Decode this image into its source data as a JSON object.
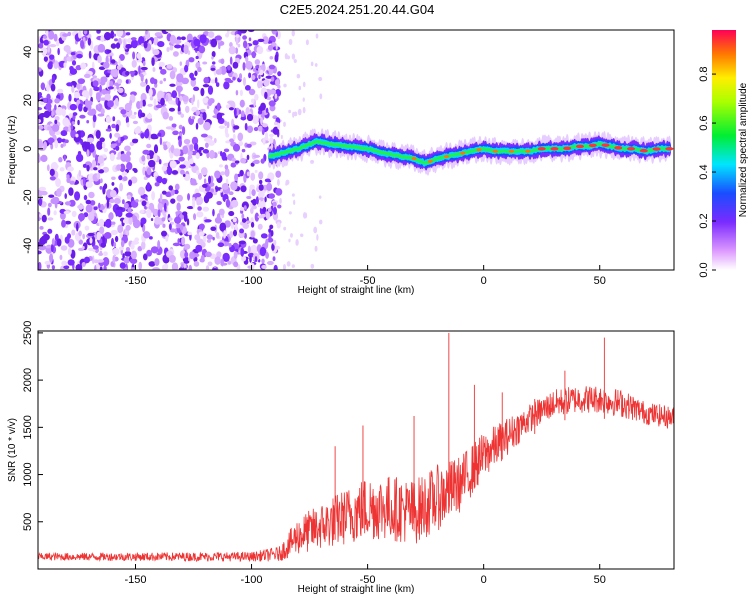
{
  "title": "C2E5.2024.251.20.44.G04",
  "chart_data": [
    {
      "type": "heatmap",
      "name": "spectrogram",
      "xlabel": "Height of straight line (km)",
      "ylabel": "Frequency (Hz)",
      "xlim": [
        -192,
        82
      ],
      "ylim": [
        -50,
        49
      ],
      "xticks": [
        -150,
        -100,
        -50,
        0,
        50
      ],
      "yticks": [
        -40,
        -20,
        0,
        20,
        40
      ],
      "noise_region_x": [
        -192,
        -90
      ],
      "signal_track": {
        "x": [
          -92,
          -88,
          -80,
          -72,
          -66,
          -58,
          -50,
          -42,
          -36,
          -30,
          -25,
          -20,
          -15,
          -10,
          -5,
          0,
          5,
          10,
          15,
          20,
          25,
          30,
          35,
          40,
          45,
          50,
          55,
          60,
          65,
          70,
          75,
          80
        ],
        "freq": [
          -3,
          -2,
          0,
          3,
          2,
          1,
          0,
          -2,
          -3,
          -4,
          -6,
          -4,
          -3,
          -2,
          -1,
          0,
          -1,
          -1,
          -1,
          -1,
          0,
          0,
          0,
          1,
          1,
          2,
          1,
          0,
          0,
          -1,
          0,
          0
        ]
      },
      "colorbar": {
        "label": "Normalized spectral amplitude",
        "range": [
          0,
          0.98
        ],
        "ticks": [
          "0.0",
          "0.2",
          "0.4",
          "0.6",
          "0.8"
        ]
      }
    },
    {
      "type": "line",
      "name": "snr",
      "xlabel": "Height of straight line (km)",
      "ylabel": "SNR (10 * v/v)",
      "xlim": [
        -192,
        82
      ],
      "ylim": [
        0,
        2520
      ],
      "xticks": [
        -150,
        -100,
        -50,
        0,
        50
      ],
      "yticks": [
        500,
        1000,
        1500,
        2000,
        2500
      ],
      "series": [
        {
          "name": "SNR",
          "color": "#ee3333",
          "envelope_x": [
            -192,
            -100,
            -88,
            -80,
            -70,
            -60,
            -50,
            -40,
            -30,
            -20,
            -10,
            0,
            10,
            20,
            30,
            40,
            50,
            60,
            70,
            82
          ],
          "envelope_mean": [
            130,
            130,
            160,
            350,
            450,
            550,
            650,
            650,
            600,
            750,
            900,
            1200,
            1400,
            1600,
            1750,
            1800,
            1800,
            1750,
            1650,
            1600
          ],
          "envelope_spread": [
            40,
            50,
            80,
            200,
            250,
            300,
            350,
            350,
            350,
            350,
            300,
            250,
            200,
            150,
            150,
            150,
            150,
            150,
            120,
            120
          ],
          "spikes": [
            {
              "x": -15,
              "y": 2500
            },
            {
              "x": -30,
              "y": 1620
            },
            {
              "x": -52,
              "y": 1520
            },
            {
              "x": 52,
              "y": 2450
            },
            {
              "x": -64,
              "y": 1300
            },
            {
              "x": 8,
              "y": 1870
            },
            {
              "x": -4,
              "y": 1950
            },
            {
              "x": 35,
              "y": 2100
            },
            {
              "x": 22,
              "y": 1800
            }
          ]
        }
      ]
    }
  ]
}
